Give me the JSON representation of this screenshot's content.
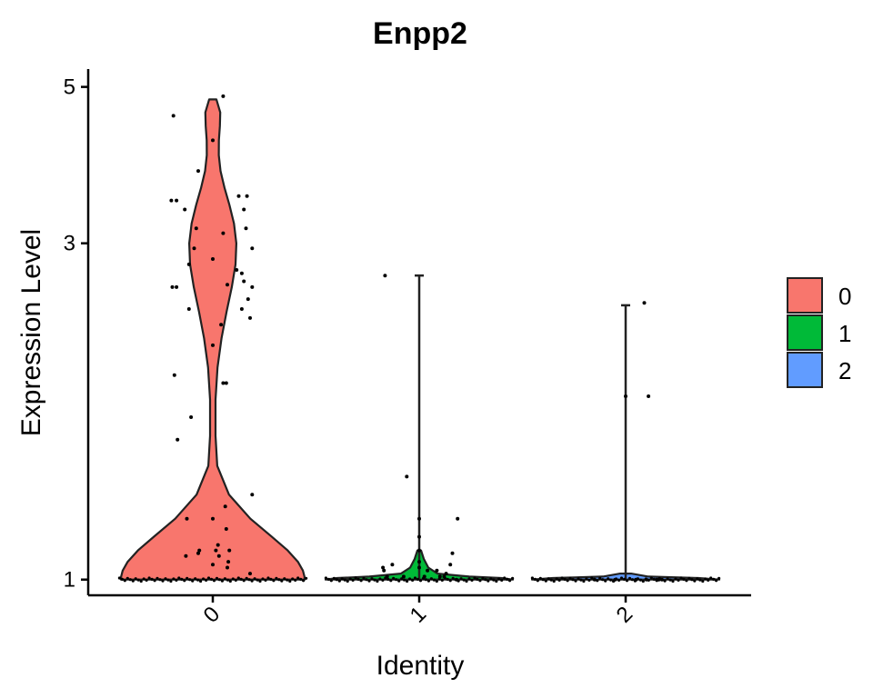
{
  "chart_data": {
    "type": "violin",
    "title": "Enpp2",
    "xlabel": "Identity",
    "ylabel": "Expression Level",
    "scale": "log",
    "ylim": [
      0.95,
      5.3
    ],
    "yticks": [
      1,
      3,
      5
    ],
    "ytick_labels": [
      "1",
      "3",
      "5"
    ],
    "categories": [
      "0",
      "1",
      "2"
    ],
    "colors": {
      "0": "#F8766D",
      "1": "#00BA38",
      "2": "#619CFF"
    },
    "legend": {
      "position": "right",
      "entries": [
        "0",
        "1",
        "2"
      ]
    },
    "grid": false,
    "series": [
      {
        "name": "0",
        "max": 4.8,
        "points": [
          [
            -0.38,
            4.55
          ],
          [
            0.1,
            4.85
          ],
          [
            0.0,
            4.2
          ],
          [
            -0.14,
            3.8
          ],
          [
            -0.4,
            3.45
          ],
          [
            -0.35,
            3.45
          ],
          [
            -0.27,
            3.35
          ],
          [
            0.25,
            3.5
          ],
          [
            0.33,
            3.5
          ],
          [
            0.3,
            3.35
          ],
          [
            -0.16,
            3.15
          ],
          [
            0.32,
            3.15
          ],
          [
            0.1,
            3.1
          ],
          [
            -0.18,
            2.95
          ],
          [
            0.38,
            2.95
          ],
          [
            -0.23,
            2.8
          ],
          [
            0.0,
            2.85
          ],
          [
            0.23,
            2.75
          ],
          [
            0.28,
            2.72
          ],
          [
            0.3,
            2.65
          ],
          [
            -0.39,
            2.6
          ],
          [
            -0.35,
            2.6
          ],
          [
            0.14,
            2.62
          ],
          [
            0.38,
            2.6
          ],
          [
            0.34,
            2.5
          ],
          [
            -0.23,
            2.42
          ],
          [
            0.28,
            2.42
          ],
          [
            0.36,
            2.35
          ],
          [
            0.08,
            2.3
          ],
          [
            0.0,
            2.15
          ],
          [
            -0.37,
            1.95
          ],
          [
            0.13,
            1.9
          ],
          [
            0.1,
            1.9
          ],
          [
            -0.21,
            1.7
          ],
          [
            -0.34,
            1.58
          ],
          [
            0.38,
            1.32
          ],
          [
            0.12,
            1.27
          ],
          [
            -0.25,
            1.22
          ],
          [
            0.0,
            1.22
          ],
          [
            0.13,
            1.18
          ],
          [
            0.05,
            1.12
          ],
          [
            -0.13,
            1.1
          ],
          [
            0.03,
            1.1
          ],
          [
            0.16,
            1.1
          ],
          [
            -0.14,
            1.09
          ],
          [
            -0.26,
            1.08
          ],
          [
            0.06,
            1.08
          ],
          [
            0.15,
            1.06
          ],
          [
            0.0,
            1.05
          ],
          [
            0.14,
            1.04
          ],
          [
            0.36,
            1.02
          ]
        ]
      },
      {
        "name": "1",
        "max": 2.7,
        "points": [
          [
            -0.33,
            2.7
          ],
          [
            -0.12,
            1.4
          ],
          [
            0.0,
            1.22
          ],
          [
            0.37,
            1.22
          ],
          [
            0.3,
            1.05
          ],
          [
            -0.26,
            1.05
          ],
          [
            0.0,
            1.15
          ],
          [
            0.0,
            1.1
          ],
          [
            0.32,
            1.09
          ],
          [
            -0.35,
            1.04
          ],
          [
            0.26,
            1.02
          ],
          [
            0.08,
            1.03
          ],
          [
            0.17,
            1.03
          ],
          [
            -0.34,
            1.03
          ],
          [
            -0.31,
            1.01
          ],
          [
            0.24,
            1.01
          ],
          [
            0.36,
            1.0
          ],
          [
            0.2,
            1.01
          ],
          [
            -0.15,
            1.01
          ],
          [
            0.05,
            1.01
          ],
          [
            0.0,
            1.06
          ],
          [
            0.0,
            1.04
          ]
        ]
      },
      {
        "name": "2",
        "max": 2.45,
        "points": [
          [
            0.18,
            2.47
          ],
          [
            0.22,
            1.82
          ],
          [
            0.0,
            1.82
          ],
          [
            -0.3,
            1.0
          ],
          [
            0.35,
            1.0
          ],
          [
            0.3,
            1.0
          ],
          [
            0.2,
            1.0
          ],
          [
            0.1,
            1.0
          ],
          [
            -0.1,
            1.0
          ],
          [
            0.32,
            1.0
          ]
        ]
      }
    ]
  }
}
